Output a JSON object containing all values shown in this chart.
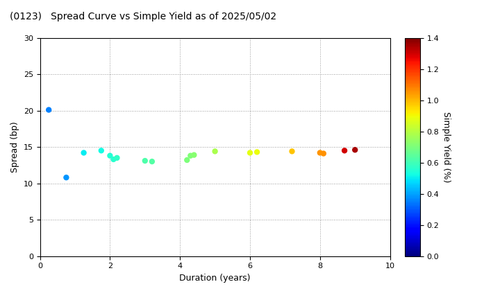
{
  "title": "(0123)   Spread Curve vs Simple Yield as of 2025/05/02",
  "xlabel": "Duration (years)",
  "ylabel": "Spread (bp)",
  "colorbar_label": "Simple Yield (%)",
  "xlim": [
    0,
    10
  ],
  "ylim": [
    0,
    30
  ],
  "xticks": [
    0,
    2,
    4,
    6,
    8,
    10
  ],
  "yticks": [
    0,
    5,
    10,
    15,
    20,
    25,
    30
  ],
  "cmap_vmin": 0.0,
  "cmap_vmax": 1.4,
  "colorbar_ticks": [
    0.0,
    0.2,
    0.4,
    0.6,
    0.8,
    1.0,
    1.2,
    1.4
  ],
  "points": [
    {
      "duration": 0.25,
      "spread": 20.1,
      "yield": 0.35
    },
    {
      "duration": 0.75,
      "spread": 10.8,
      "yield": 0.38
    },
    {
      "duration": 1.25,
      "spread": 14.2,
      "yield": 0.5
    },
    {
      "duration": 1.75,
      "spread": 14.5,
      "yield": 0.52
    },
    {
      "duration": 2.0,
      "spread": 13.8,
      "yield": 0.55
    },
    {
      "duration": 2.1,
      "spread": 13.3,
      "yield": 0.56
    },
    {
      "duration": 2.2,
      "spread": 13.5,
      "yield": 0.57
    },
    {
      "duration": 3.0,
      "spread": 13.1,
      "yield": 0.62
    },
    {
      "duration": 3.2,
      "spread": 13.0,
      "yield": 0.63
    },
    {
      "duration": 4.2,
      "spread": 13.2,
      "yield": 0.7
    },
    {
      "duration": 4.3,
      "spread": 13.8,
      "yield": 0.71
    },
    {
      "duration": 4.4,
      "spread": 13.9,
      "yield": 0.72
    },
    {
      "duration": 5.0,
      "spread": 14.4,
      "yield": 0.78
    },
    {
      "duration": 6.0,
      "spread": 14.2,
      "yield": 0.88
    },
    {
      "duration": 6.2,
      "spread": 14.3,
      "yield": 0.89
    },
    {
      "duration": 7.2,
      "spread": 14.4,
      "yield": 0.98
    },
    {
      "duration": 8.0,
      "spread": 14.2,
      "yield": 1.05
    },
    {
      "duration": 8.1,
      "spread": 14.1,
      "yield": 1.06
    },
    {
      "duration": 8.7,
      "spread": 14.5,
      "yield": 1.3
    },
    {
      "duration": 9.0,
      "spread": 14.6,
      "yield": 1.35
    }
  ],
  "marker_size": 25,
  "background_color": "#ffffff",
  "grid_color": "#999999",
  "fig_width": 7.2,
  "fig_height": 4.2,
  "fig_dpi": 100
}
